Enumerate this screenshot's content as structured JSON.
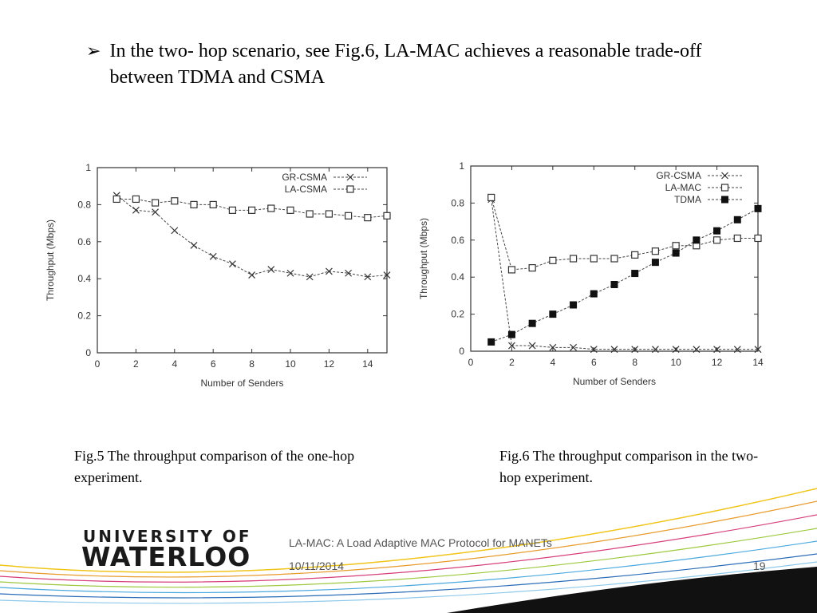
{
  "slide": {
    "bullet": "In the two- hop scenario, see Fig.6, LA-MAC achieves a reasonable trade-off between TDMA and CSMA",
    "caption1": "Fig.5 The throughput comparison of the one-hop experiment.",
    "caption2": "Fig.6 The throughput comparison in the two-hop experiment."
  },
  "footer": {
    "logo_line1": "UNIVERSITY OF",
    "logo_line2": "WATERLOO",
    "title": "LA-MAC: A Load Adaptive MAC Protocol for MANETs",
    "date": "10/11/2014",
    "page": "19"
  },
  "chart_data": [
    {
      "type": "line",
      "title": "",
      "xlabel": "Number of Senders",
      "ylabel": "Throughput (Mbps)",
      "xlim": [
        0,
        15
      ],
      "ylim": [
        0,
        1
      ],
      "xticks": [
        0,
        2,
        4,
        6,
        8,
        10,
        12,
        14
      ],
      "yticks": [
        0,
        0.2,
        0.4,
        0.6,
        0.8,
        1
      ],
      "legend": "top-right",
      "series": [
        {
          "name": "GR-CSMA",
          "marker": "x",
          "x": [
            1,
            2,
            3,
            4,
            5,
            6,
            7,
            8,
            9,
            10,
            11,
            12,
            13,
            14,
            15
          ],
          "values": [
            0.85,
            0.77,
            0.76,
            0.66,
            0.58,
            0.52,
            0.48,
            0.42,
            0.45,
            0.43,
            0.41,
            0.44,
            0.43,
            0.41,
            0.42
          ]
        },
        {
          "name": "LA-CSMA",
          "marker": "open-square",
          "x": [
            1,
            2,
            3,
            4,
            5,
            6,
            7,
            8,
            9,
            10,
            11,
            12,
            13,
            14,
            15
          ],
          "values": [
            0.83,
            0.83,
            0.81,
            0.82,
            0.8,
            0.8,
            0.77,
            0.77,
            0.78,
            0.77,
            0.75,
            0.75,
            0.74,
            0.73,
            0.74
          ]
        }
      ]
    },
    {
      "type": "line",
      "title": "",
      "xlabel": "Number of Senders",
      "ylabel": "Throughput (Mbps)",
      "xlim": [
        0,
        14
      ],
      "ylim": [
        0,
        1
      ],
      "xticks": [
        0,
        2,
        4,
        6,
        8,
        10,
        12,
        14
      ],
      "yticks": [
        0,
        0.2,
        0.4,
        0.6,
        0.8,
        1
      ],
      "legend": "top-right",
      "series": [
        {
          "name": "GR-CSMA",
          "marker": "x",
          "x": [
            1,
            2,
            3,
            4,
            5,
            6,
            7,
            8,
            9,
            10,
            11,
            12,
            13,
            14
          ],
          "values": [
            0.82,
            0.03,
            0.03,
            0.02,
            0.02,
            0.01,
            0.01,
            0.01,
            0.01,
            0.01,
            0.01,
            0.01,
            0.01,
            0.01
          ]
        },
        {
          "name": "LA-MAC",
          "marker": "open-square",
          "x": [
            1,
            2,
            3,
            4,
            5,
            6,
            7,
            8,
            9,
            10,
            11,
            12,
            13,
            14
          ],
          "values": [
            0.83,
            0.44,
            0.45,
            0.49,
            0.5,
            0.5,
            0.5,
            0.52,
            0.54,
            0.57,
            0.57,
            0.6,
            0.61,
            0.61
          ]
        },
        {
          "name": "TDMA",
          "marker": "filled-square",
          "x": [
            1,
            2,
            3,
            4,
            5,
            6,
            7,
            8,
            9,
            10,
            11,
            12,
            13,
            14
          ],
          "values": [
            0.05,
            0.09,
            0.15,
            0.2,
            0.25,
            0.31,
            0.36,
            0.42,
            0.48,
            0.53,
            0.6,
            0.65,
            0.71,
            0.77
          ]
        }
      ]
    }
  ]
}
